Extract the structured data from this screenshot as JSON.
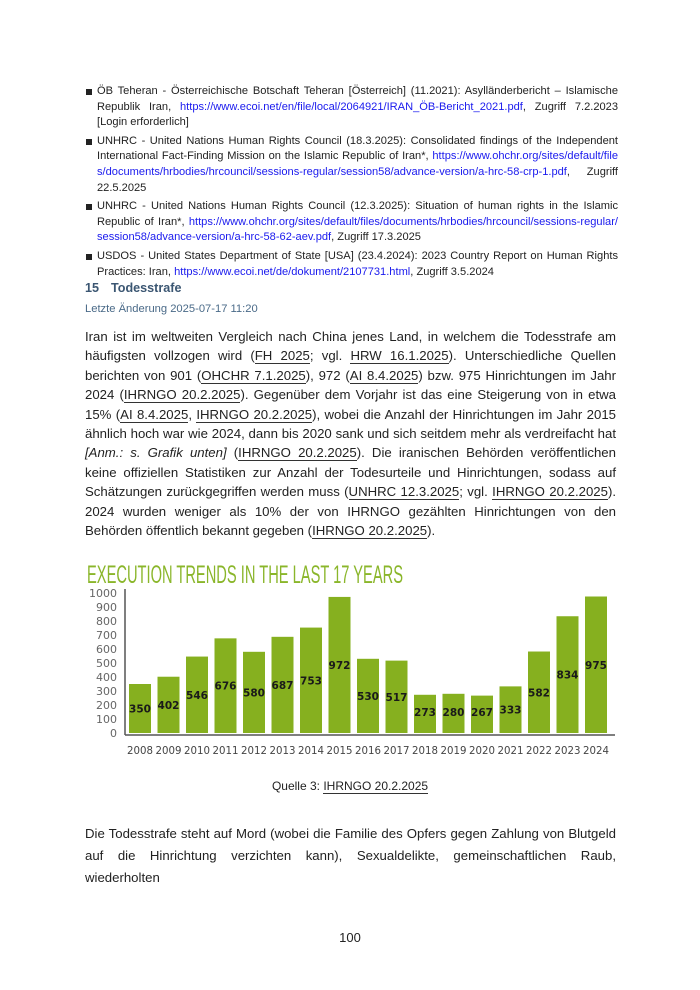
{
  "references": [
    {
      "text": "ÖB Teheran - Österreichische Botschaft Teheran [Österreich] (11.2021): Asylländerbericht – Islamische Republik Iran, ",
      "link": "https://www.ecoi.net/en/file/local/2064921/IRAN_ÖB-Bericht_2021.pdf",
      "after": ", Zugriff 7.2.2023 [Login erforderlich]"
    },
    {
      "text": "UNHRC - United Nations Human Rights Council (18.3.2025): Consolidated findings of the Independent International Fact-Finding Mission on the Islamic Republic of Iran*, ",
      "link": "https://www.ohchr.org/sites/default/files/documents/hrbodies/hrcouncil/sessions-regular/session58/advance-version/a-hrc-58-crp-1.pdf",
      "after": ", Zugriff 22.5.2025"
    },
    {
      "text": "UNHRC - United Nations Human Rights Council (12.3.2025): Situation of human rights in the Islamic Republic of Iran*, ",
      "link": "https://www.ohchr.org/sites/default/files/documents/hrbodies/hrcouncil/sessions-regular/session58/advance-version/a-hrc-58-62-aev.pdf",
      "after": ", Zugriff 17.3.2025"
    },
    {
      "text": "USDOS - United States Department of State [USA] (23.4.2024): 2023 Country Report on Human Rights Practices: Iran, ",
      "link": "https://www.ecoi.net/de/dokument/2107731.html",
      "after": ", Zugriff 3.5.2024"
    }
  ],
  "section": {
    "number": "15",
    "title": "Todesstrafe",
    "last_modified": "Letzte Änderung 2025-07-17 11:20"
  },
  "paragraph1": [
    {
      "t": "Iran ist im weltweiten Vergleich nach China jenes Land, in welchem die Todesstrafe am häufigsten vollzogen wird ("
    },
    {
      "t": "FH 2025",
      "cite": true
    },
    {
      "t": "; vgl. "
    },
    {
      "t": "HRW 16.1.2025",
      "cite": true
    },
    {
      "t": "). Unterschiedliche Quellen berichten von 901 ("
    },
    {
      "t": "OHCHR 7.1.2025",
      "cite": true
    },
    {
      "t": "), 972 ("
    },
    {
      "t": "AI 8.4.2025",
      "cite": true
    },
    {
      "t": ") bzw. 975 Hinrichtungen im Jahr 2024 ("
    },
    {
      "t": "IHRNGO 20.2.2025",
      "cite": true
    },
    {
      "t": "). Gegenüber dem Vorjahr ist das eine Steigerung von in etwa 15% ("
    },
    {
      "t": "AI 8.4.2025",
      "cite": true
    },
    {
      "t": ", "
    },
    {
      "t": "IHRNGO 20.2.2025",
      "cite": true
    },
    {
      "t": "), wobei die Anzahl der Hinrichtungen im Jahr 2015 ähnlich hoch war wie 2024, dann bis 2020 sank und sich seitdem mehr als verdreifacht hat "
    },
    {
      "t": "[Anm.: s. Grafik unten]",
      "italic": true
    },
    {
      "t": " ("
    },
    {
      "t": "IHRNGO 20.2.2025",
      "cite": true
    },
    {
      "t": "). Die iranischen Behörden veröffentlichen keine offiziellen Statistiken zur Anzahl der Todesurteile und Hinrichtungen, sodass auf Schätzungen zurückgegriffen werden muss ("
    },
    {
      "t": "UNHRC 12.3.2025",
      "cite": true
    },
    {
      "t": "; vgl. "
    },
    {
      "t": "IHRNGO 20.2.2025",
      "cite": true
    },
    {
      "t": "). 2024 wurden weniger als 10% der von IHRNGO gezählten Hinrichtungen von den Behörden öffentlich bekannt gegeben ("
    },
    {
      "t": "IHRNGO 20.2.2025",
      "cite": true
    },
    {
      "t": ")."
    }
  ],
  "chart_data": {
    "type": "bar",
    "title": "EXECUTION TRENDS IN THE LAST 17 YEARS",
    "categories": [
      "2008",
      "2009",
      "2010",
      "2011",
      "2012",
      "2013",
      "2014",
      "2015",
      "2016",
      "2017",
      "2018",
      "2019",
      "2020",
      "2021",
      "2022",
      "2023",
      "2024"
    ],
    "values": [
      350,
      402,
      546,
      676,
      580,
      687,
      753,
      972,
      530,
      517,
      273,
      280,
      267,
      333,
      582,
      834,
      975
    ],
    "yticks": [
      "0",
      "100",
      "200",
      "300",
      "400",
      "500",
      "600",
      "700",
      "800",
      "900",
      "1000"
    ],
    "ylim": [
      0,
      1000
    ],
    "grid": false,
    "colors": {
      "bar": "#86b01f",
      "title": "#8ab62a",
      "label": "#1a1a1a",
      "axis": "#555555"
    }
  },
  "caption": {
    "prefix": "Quelle 3: ",
    "cite": "IHRNGO 20.2.2025"
  },
  "paragraph2": "Die Todesstrafe steht auf Mord (wobei die Familie des Opfers gegen Zahlung von Blutgeld auf die Hinrichtung verzichten kann), Sexualdelikte, gemeinschaftlichen Raub, wiederholten",
  "page_number": "100"
}
